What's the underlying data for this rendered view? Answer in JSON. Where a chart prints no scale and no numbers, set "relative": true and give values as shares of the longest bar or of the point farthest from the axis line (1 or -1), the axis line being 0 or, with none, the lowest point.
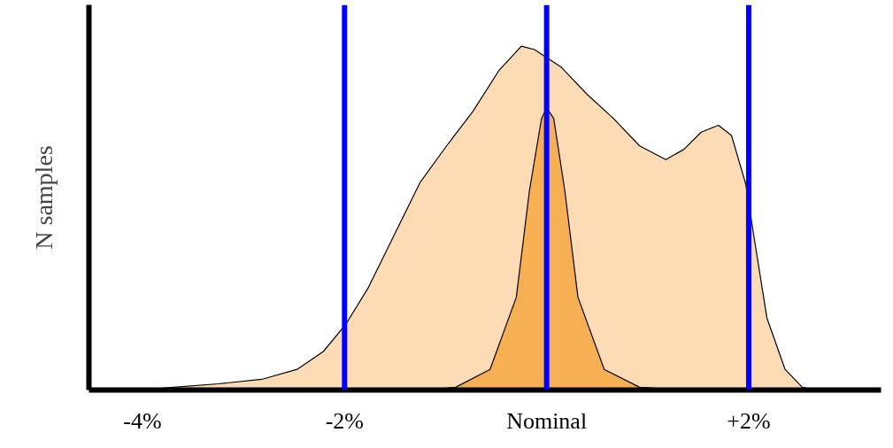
{
  "chart_data": {
    "type": "area",
    "relative": true,
    "ylabel": "N samples",
    "xlim": [
      -4.53,
      3.31
    ],
    "xticks": [
      {
        "value": -4,
        "label": "-4%"
      },
      {
        "value": -2,
        "label": "-2%"
      },
      {
        "value": 0,
        "label": "Nominal"
      },
      {
        "value": 2,
        "label": "+2%"
      }
    ],
    "grid": false,
    "series": [
      {
        "color": "#fdd5a8",
        "x": [
          -4.03,
          -3.69,
          -3.25,
          -2.82,
          -2.47,
          -2.21,
          -1.99,
          -1.77,
          -1.51,
          -1.25,
          -0.99,
          -0.73,
          -0.47,
          -0.25,
          -0.12,
          0.14,
          0.4,
          0.66,
          0.92,
          1.18,
          1.36,
          1.53,
          1.7,
          1.83,
          1.97,
          2.05,
          2.18,
          2.36,
          2.53,
          2.66
        ],
        "values": [
          0,
          0.008,
          0.018,
          0.031,
          0.06,
          0.112,
          0.19,
          0.295,
          0.45,
          0.605,
          0.71,
          0.81,
          0.93,
          1.0,
          0.99,
          0.94,
          0.86,
          0.79,
          0.71,
          0.67,
          0.7,
          0.75,
          0.77,
          0.74,
          0.6,
          0.45,
          0.21,
          0.06,
          0.008,
          0
        ]
      },
      {
        "color": "#f5a742",
        "x": [
          -1.25,
          -0.9,
          -0.56,
          -0.3,
          -0.17,
          -0.05,
          0,
          0.07,
          0.18,
          0.31,
          0.57,
          0.92,
          1.36
        ],
        "values": [
          0,
          0.008,
          0.06,
          0.27,
          0.58,
          0.79,
          0.82,
          0.79,
          0.58,
          0.27,
          0.06,
          0.008,
          0
        ]
      }
    ],
    "ref_lines": [
      {
        "axis": "x",
        "value": -2,
        "color": "#0000ff"
      },
      {
        "axis": "x",
        "value": 0,
        "color": "#0000ff"
      },
      {
        "axis": "x",
        "value": 2,
        "color": "#0000ff"
      }
    ]
  }
}
